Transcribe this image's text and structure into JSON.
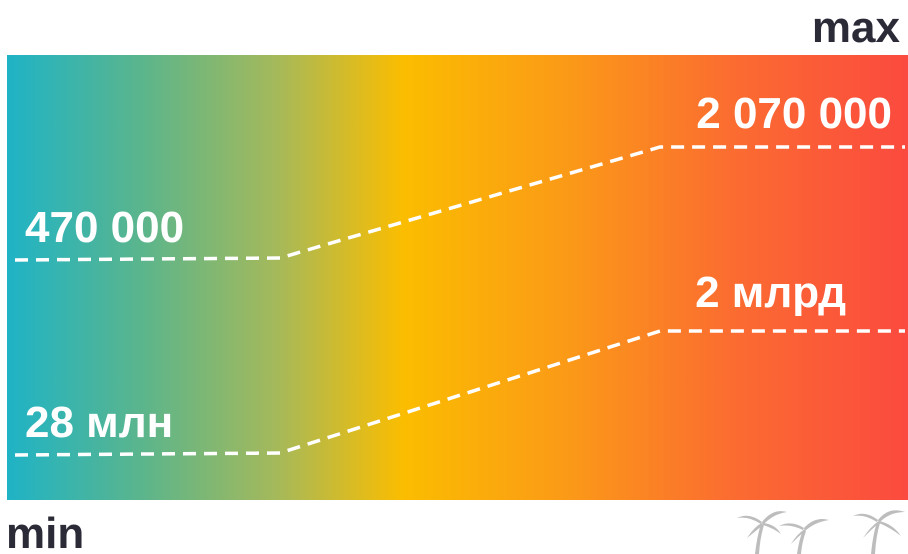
{
  "labels": {
    "max": "max",
    "min": "min"
  },
  "values": {
    "row1_left": "470 000",
    "row1_right": "2 070 000",
    "row2_left": "28 млн",
    "row2_right": "2 млрд"
  },
  "colors": {
    "gradient": [
      "#1fb3c6",
      "#5bb58c",
      "#a5b95a",
      "#fbbd00",
      "#fb9a17",
      "#fb6d30",
      "#fb4a3f"
    ],
    "text_dark": "#2b2b38",
    "text_light": "#ffffff"
  },
  "icons": {
    "watermark": "palm-trees-icon"
  }
}
